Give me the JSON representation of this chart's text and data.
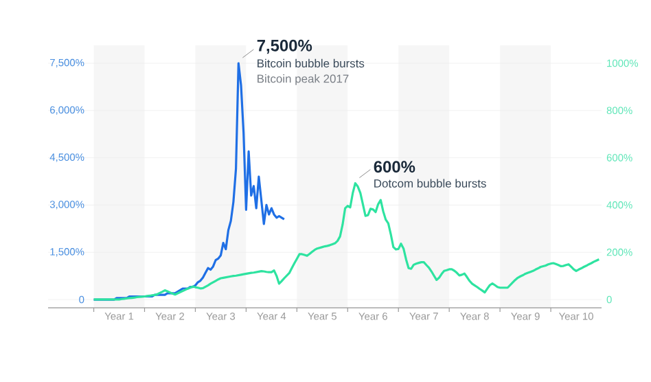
{
  "chart_data": {
    "type": "line",
    "categories": [
      null,
      null,
      null,
      null,
      null,
      null,
      null,
      null,
      null,
      null,
      "Year 1",
      null,
      null,
      null,
      null,
      null,
      null,
      null,
      null,
      null,
      null,
      null,
      null,
      null,
      null,
      null,
      null,
      null,
      null,
      null,
      "Year 2",
      null,
      null,
      null,
      null,
      null,
      null,
      null,
      null,
      null,
      null,
      null,
      null,
      null,
      null,
      null,
      null,
      null,
      null,
      null,
      "Year 3",
      null,
      null,
      null,
      null,
      null,
      null,
      null,
      null,
      null,
      null,
      null,
      null,
      null,
      null,
      null,
      null,
      null,
      null,
      null,
      "Year 4",
      null,
      null,
      null,
      null,
      null,
      null,
      null,
      null,
      null,
      null,
      null,
      null,
      null,
      null,
      null,
      null,
      null,
      null,
      null,
      "Year 5",
      null,
      null,
      null,
      null,
      null,
      null,
      null,
      null,
      null,
      null,
      null,
      null,
      null,
      null,
      null,
      null,
      null,
      null,
      null,
      "Year 6",
      null,
      null,
      null,
      null,
      null,
      null,
      null,
      null,
      null,
      null,
      null,
      null,
      null,
      null,
      null,
      null,
      null,
      null,
      null,
      "Year 7",
      null,
      null,
      null,
      null,
      null,
      null,
      null,
      null,
      null,
      null,
      null,
      null,
      null,
      null,
      null,
      null,
      null,
      null,
      null,
      "Year 8",
      null,
      null,
      null,
      null,
      null,
      null,
      null,
      null,
      null,
      null,
      null,
      null,
      null,
      null,
      null,
      null,
      null,
      null,
      null,
      "Year 9",
      null,
      null,
      null,
      null,
      null,
      null,
      null,
      null,
      null,
      null,
      null,
      null,
      null,
      null,
      null,
      null,
      null,
      null,
      null,
      "Year 10",
      null,
      null,
      null,
      null,
      null,
      null,
      null,
      null,
      null
    ],
    "ylim": [
      -260,
      7500
    ],
    "yticks": [
      0,
      {
        "value": 1500,
        "label": "1,500%"
      },
      {
        "value": 3000,
        "label": "3,000%"
      },
      {
        "value": 4500,
        "label": "4,500%"
      },
      {
        "value": 6000,
        "label": "6,000%"
      },
      {
        "value": 7500,
        "label": "7,500%"
      }
    ],
    "y2lim": [
      -35,
      1000
    ],
    "y2ticks": [
      0,
      {
        "value": 200,
        "label": "200%"
      },
      {
        "value": 400,
        "label": "400%"
      },
      {
        "value": 600,
        "label": "600%"
      },
      {
        "value": 800,
        "label": "800%"
      },
      {
        "value": 1000,
        "label": "1000%"
      }
    ],
    "grid": "y",
    "series": [
      {
        "color": "#1f6fe5",
        "values": [
          0,
          0,
          0,
          0,
          0,
          0,
          0,
          0,
          0,
          50,
          50,
          50,
          50,
          50,
          100,
          100,
          100,
          100,
          100,
          100,
          100,
          100,
          100,
          100,
          150,
          150,
          150,
          150,
          150,
          200,
          200,
          200,
          200,
          250,
          300,
          350,
          350,
          350,
          400,
          400,
          450,
          550,
          600,
          700,
          850,
          1000,
          950,
          1050,
          1250,
          1300,
          1400,
          1800,
          1600,
          2200,
          2500,
          3100,
          4150,
          7500,
          6800,
          5300,
          2850,
          4700,
          3300,
          3600,
          2900,
          3900,
          3150,
          2400,
          3000,
          2700,
          2900,
          2700,
          2600,
          2650,
          2600,
          2550,
          null,
          null,
          null,
          null,
          null,
          null,
          null,
          null,
          null,
          null,
          null,
          null,
          null,
          null,
          null,
          null,
          null,
          null,
          null,
          null,
          null,
          null,
          null,
          null,
          null,
          null,
          null,
          null,
          null,
          null,
          null,
          null,
          null,
          null,
          null,
          null,
          null,
          null,
          null,
          null,
          null,
          null,
          null,
          null,
          null,
          null,
          null,
          null,
          null,
          null,
          null,
          null,
          null,
          null,
          null,
          null,
          null,
          null,
          null,
          null,
          null,
          null,
          null,
          null,
          null,
          null,
          null,
          null,
          null,
          null,
          null,
          null,
          null,
          null,
          null,
          null,
          null,
          null,
          null,
          null,
          null,
          null,
          null,
          null,
          null,
          null,
          null,
          null,
          null,
          null,
          null,
          null,
          null,
          null,
          null,
          null,
          null,
          null,
          null,
          null,
          null,
          null,
          null,
          null,
          null,
          null,
          null,
          null,
          null,
          null,
          null,
          null,
          null,
          null,
          null,
          null,
          null,
          null,
          null,
          null,
          null,
          null,
          null,
          null
        ]
      },
      {
        "color": "#2ee3a0",
        "axis": "y2",
        "values": [
          0,
          0,
          0,
          0,
          0,
          0,
          0,
          0,
          0,
          0,
          0,
          2,
          3,
          5,
          6,
          7,
          8,
          10,
          11,
          12,
          13,
          15,
          16,
          18,
          19,
          22,
          28,
          33,
          39,
          35,
          30,
          25,
          21,
          26,
          31,
          36,
          41,
          46,
          50,
          55,
          52,
          50,
          47,
          48,
          54,
          60,
          67,
          73,
          79,
          85,
          90,
          92,
          94,
          96,
          98,
          100,
          101,
          103,
          105,
          107,
          109,
          111,
          113,
          114,
          116,
          118,
          120,
          119,
          117,
          116,
          116,
          123,
          100,
          67,
          78,
          90,
          101,
          112,
          133,
          153,
          172,
          192,
          192,
          189,
          185,
          193,
          202,
          210,
          216,
          219,
          222,
          225,
          227,
          230,
          234,
          238,
          248,
          267,
          317,
          386,
          396,
          390,
          450,
          492,
          478,
          451,
          403,
          354,
          357,
          384,
          381,
          370,
          403,
          421,
          373,
          338,
          322,
          276,
          222,
          212,
          214,
          236,
          216,
          170,
          133,
          130,
          147,
          152,
          155,
          158,
          158,
          146,
          135,
          119,
          101,
          83,
          92,
          108,
          121,
          124,
          128,
          128,
          122,
          113,
          102,
          105,
          110,
          95,
          79,
          67,
          60,
          53,
          45,
          38,
          30,
          46,
          61,
          68,
          61,
          53,
          50,
          50,
          50,
          50,
          61,
          72,
          83,
          92,
          98,
          103,
          109,
          113,
          117,
          121,
          127,
          132,
          138,
          141,
          144,
          149,
          152,
          154,
          150,
          146,
          141,
          142,
          146,
          149,
          139,
          128,
          121,
          127,
          132,
          138,
          143,
          149,
          154,
          160,
          165,
          170
        ]
      }
    ],
    "annotations": [
      "7,500%",
      "Bitcoin bubble bursts",
      "Bitcoin peak 2017",
      "600%",
      "Dotcom bubble bursts"
    ]
  }
}
